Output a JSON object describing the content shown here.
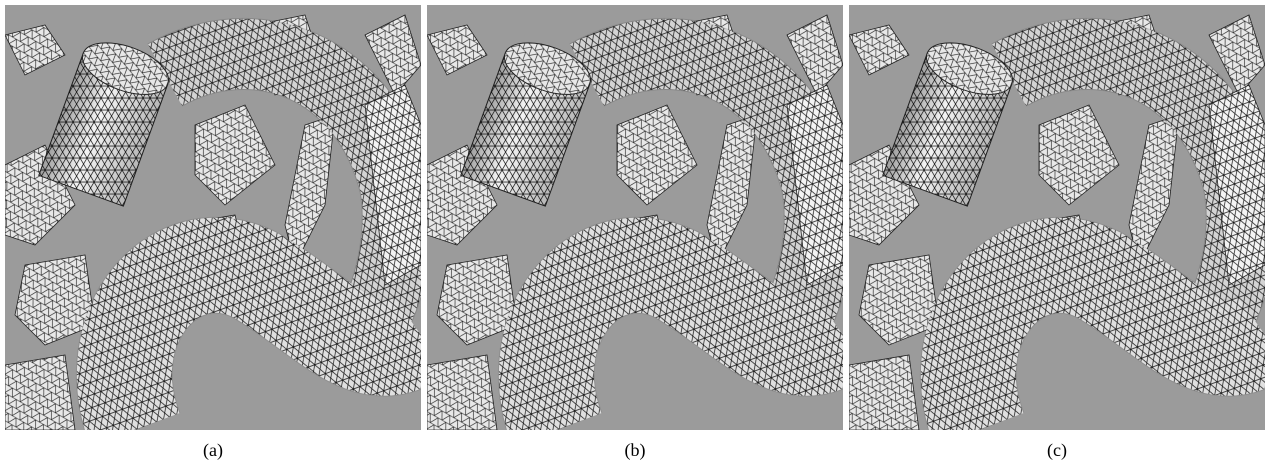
{
  "panels": [
    {
      "caption": "(a)"
    },
    {
      "caption": "(b)"
    },
    {
      "caption": "(c)"
    }
  ]
}
